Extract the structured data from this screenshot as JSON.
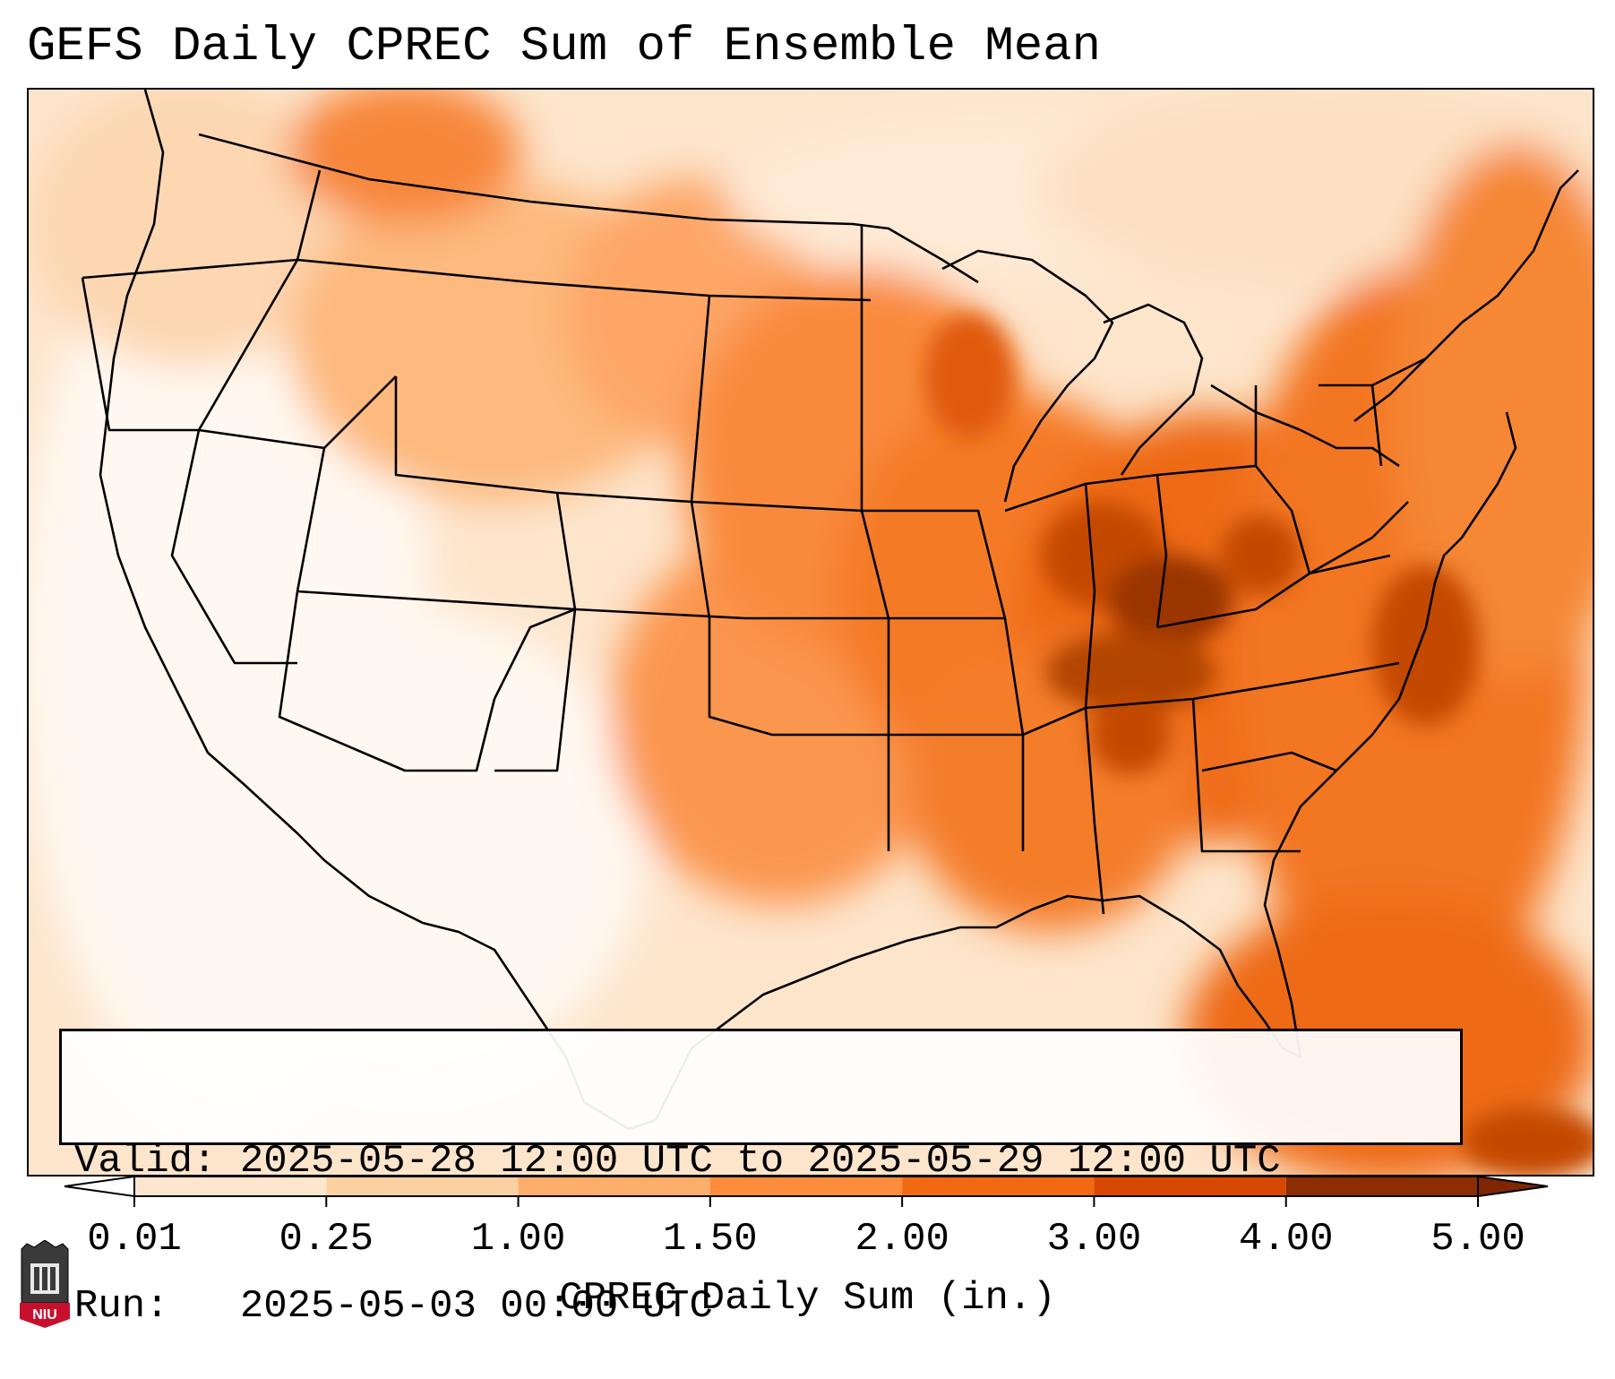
{
  "title": "GEFS Daily CPREC Sum of Ensemble Mean",
  "info": {
    "valid_label": "Valid:",
    "valid_value": "2025-05-28 12:00 UTC to 2025-05-29 12:00 UTC",
    "run_label": "Run:",
    "run_value": "2025-05-03 00:00 UTC"
  },
  "colorbar": {
    "label": "CPREC Daily Sum (in.)",
    "ticks": [
      "0.01",
      "0.25",
      "1.00",
      "1.50",
      "2.00",
      "3.00",
      "4.00",
      "5.00"
    ],
    "colors": [
      "#fff5eb",
      "#fee6ce",
      "#fdd0a2",
      "#fdae6b",
      "#fd8d3c",
      "#f16913",
      "#d94801",
      "#8c2d04"
    ],
    "under_color": "#ffffff",
    "over_color": "#7f2704",
    "extend": "both"
  },
  "logo": {
    "text": "NIU",
    "color": "#c8102e"
  }
}
